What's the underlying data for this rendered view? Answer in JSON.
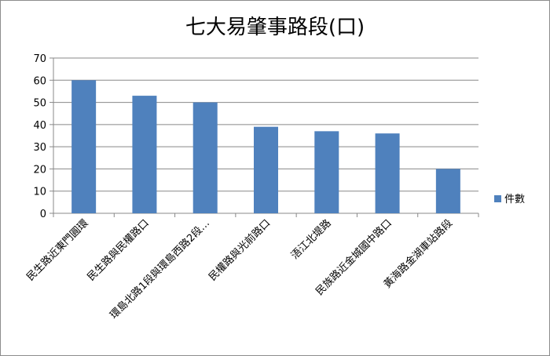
{
  "chart_data": {
    "type": "bar",
    "title": "七大易肇事路段(口)",
    "categories": [
      "民生路近東門圓環",
      "民生路與民權路口",
      "環島北路1段與環島西路2段…",
      "民權路與光前路口",
      "浯江北堤路",
      "民族路近金城國中路口",
      "黃海路金湖車站路段"
    ],
    "series": [
      {
        "name": "件數",
        "values": [
          60,
          53,
          50,
          39,
          37,
          36,
          20
        ]
      }
    ],
    "ylim": [
      0,
      70
    ],
    "yticks": [
      0,
      10,
      20,
      30,
      40,
      50,
      60,
      70
    ],
    "grid": true,
    "legend": "right",
    "colors": {
      "bar": "#4f81bd",
      "grid": "#888888"
    }
  }
}
